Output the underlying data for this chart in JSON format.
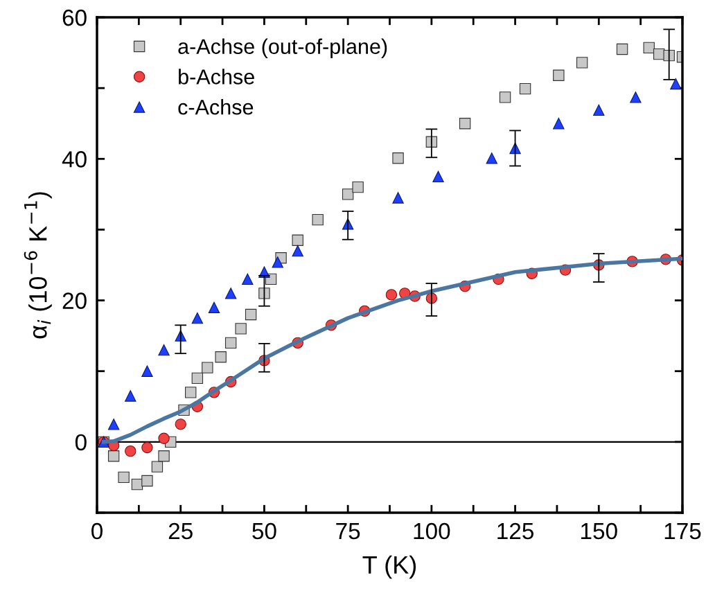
{
  "chart_data": {
    "type": "scatter",
    "xlabel": "T (K)",
    "ylabel": "α$_{i}$ (10$^{−6}$ K$^{−1}$)",
    "xlim": [
      0,
      175
    ],
    "ylim": [
      -10,
      60
    ],
    "xticks": [
      0,
      {
        "value": 12.5,
        "label": null
      },
      25,
      {
        "value": 37.5,
        "label": null
      },
      50,
      {
        "value": 62.5,
        "label": null
      },
      75,
      {
        "value": 87.5,
        "label": null
      },
      100,
      {
        "value": 112.5,
        "label": null
      },
      125,
      {
        "value": 137.5,
        "label": null
      },
      150,
      {
        "value": 162.5,
        "label": null
      },
      175
    ],
    "yticks": [
      {
        "value": -10,
        "label": null
      },
      0,
      {
        "value": 10,
        "label": null
      },
      20,
      {
        "value": 30,
        "label": null
      },
      40,
      {
        "value": 50,
        "label": null
      },
      60
    ],
    "grid": false,
    "legend": "top left",
    "ref_lines": [
      {
        "axis": "y",
        "value": 0,
        "color": "#000000"
      }
    ],
    "series": [
      {
        "name": "a-Achse (out-of-plane)",
        "marker": "square",
        "color": "#c8c8c8",
        "x": [
          2,
          5,
          8,
          12,
          15,
          18,
          20,
          22,
          26,
          28,
          30,
          33,
          37,
          40,
          43,
          46,
          50,
          52,
          55,
          60,
          66,
          75,
          78,
          90,
          100,
          110,
          122,
          128,
          138,
          145,
          157,
          165,
          168,
          171,
          175
        ],
        "values": [
          0,
          -2,
          -5,
          -6,
          -5.5,
          -3.5,
          -2,
          0,
          4.5,
          7,
          9,
          10.5,
          12,
          14,
          16,
          18,
          21,
          23,
          26,
          28.5,
          31.4,
          35,
          36,
          40.1,
          42.4,
          45,
          48.7,
          49.9,
          51.8,
          53.6,
          55.5,
          55.7,
          54.8,
          54.6,
          54.4
        ],
        "errors": [
          null,
          null,
          null,
          null,
          null,
          null,
          null,
          null,
          null,
          null,
          null,
          null,
          null,
          null,
          null,
          null,
          [
            19.2,
            23.5
          ],
          null,
          null,
          null,
          null,
          null,
          null,
          null,
          [
            40.2,
            44.2
          ],
          null,
          null,
          null,
          null,
          null,
          null,
          null,
          null,
          [
            51.2,
            58.3
          ],
          null
        ]
      },
      {
        "name": "b-Achse",
        "marker": "circle",
        "color": "#f04444",
        "x": [
          2,
          5,
          10,
          15,
          20,
          25,
          30,
          35,
          40,
          50,
          60,
          70,
          80,
          88,
          92,
          95,
          100,
          110,
          120,
          130,
          140,
          150,
          160,
          170,
          175
        ],
        "values": [
          0,
          -0.5,
          -1.3,
          -0.8,
          0.5,
          2.5,
          5,
          7,
          8.5,
          11.5,
          14,
          16.5,
          18.5,
          20.8,
          21,
          20.6,
          20.3,
          22,
          23,
          23.8,
          24.3,
          25,
          25.5,
          25.8,
          25.7
        ],
        "errors": [
          null,
          null,
          null,
          null,
          null,
          null,
          null,
          null,
          null,
          [
            9.9,
            13.9
          ],
          null,
          null,
          null,
          null,
          null,
          null,
          [
            17.8,
            22.4
          ],
          null,
          null,
          null,
          null,
          [
            22.6,
            26.6
          ],
          null,
          null,
          null
        ]
      },
      {
        "type": "line",
        "color": "#4a76a0",
        "line_style": "solid",
        "marker": "none",
        "x": [
          2,
          5,
          10,
          15,
          20,
          25,
          30,
          35,
          40,
          50,
          60,
          75,
          90,
          100,
          125,
          150,
          175
        ],
        "values": [
          0,
          0.1,
          1.0,
          2.2,
          3.3,
          4.3,
          5.6,
          7.2,
          8.7,
          11.8,
          14.2,
          17.5,
          20,
          21.3,
          24,
          25.2,
          25.9
        ]
      },
      {
        "name": "c-Achse",
        "marker": "triangle",
        "color": "#1f3fff",
        "x": [
          2,
          5,
          10,
          15,
          20,
          25,
          30,
          35,
          40,
          45,
          50,
          54,
          60,
          75,
          90,
          102,
          118,
          125,
          138,
          150,
          161,
          173
        ],
        "values": [
          0,
          2.5,
          6.5,
          10,
          13,
          15,
          17.5,
          19,
          21,
          23,
          24,
          25.4,
          27,
          30.8,
          34.5,
          37.5,
          40.1,
          41.5,
          45,
          46.9,
          48.7,
          50.6
        ],
        "errors": [
          null,
          null,
          null,
          null,
          null,
          [
            12.5,
            16.5
          ],
          null,
          null,
          null,
          null,
          null,
          null,
          null,
          [
            28.6,
            32.6
          ],
          null,
          null,
          null,
          [
            39,
            44
          ],
          null,
          null,
          null,
          null
        ]
      }
    ]
  }
}
